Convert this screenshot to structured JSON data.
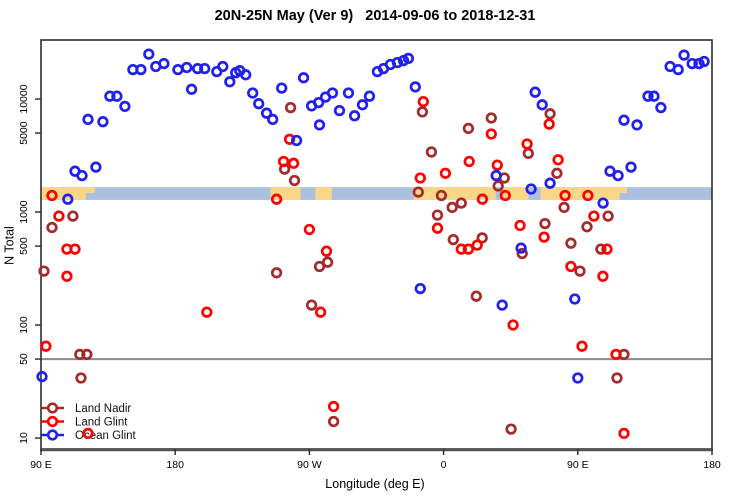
{
  "title": "20N-25N May (Ver 9)   2014-09-06 to 2018-12-31",
  "chart_data": {
    "type": "scatter",
    "title": "20N-25N May (Ver 9)   2014-09-06 to 2018-12-31",
    "xlabel": "Longitude (deg E)",
    "ylabel": "N Total",
    "x_axis": {
      "range": [
        90,
        540
      ],
      "note": "longitude axis wraps eastward 1.25 times around globe",
      "ticks": [
        {
          "pos": 90,
          "label": "90 E"
        },
        {
          "pos": 180,
          "label": "180"
        },
        {
          "pos": 270,
          "label": "90 W"
        },
        {
          "pos": 360,
          "label": "0"
        },
        {
          "pos": 450,
          "label": "90 E"
        },
        {
          "pos": 540,
          "label": "180"
        }
      ]
    },
    "y_axis": {
      "scale": "log",
      "range": [
        8,
        33300
      ],
      "ticks": [
        10,
        50,
        100,
        500,
        1000,
        5000,
        10000
      ],
      "tick_labels": [
        "10",
        "50",
        "100",
        "500",
        "1000",
        "5000",
        "10000"
      ]
    },
    "reference_line": {
      "y": 50,
      "color": "#8c8c8c"
    },
    "map_strip": {
      "y_top": 1660,
      "y_bottom": 1280,
      "ocean_color": "#aac0de",
      "land_color": "#fcd687",
      "land_patches_deg": [
        [
          90,
          120
        ],
        [
          244,
          264
        ],
        [
          274,
          285
        ],
        [
          340,
          395
        ],
        [
          399,
          417
        ],
        [
          425,
          478
        ]
      ],
      "coast_speckles_deg": [
        [
          120,
          126
        ],
        [
          476,
          483
        ]
      ]
    },
    "legend": [
      {
        "label": "Land Nadir",
        "color": "#a52a2a"
      },
      {
        "label": "Land Glint",
        "color": "#ff0000"
      },
      {
        "label": "Ocean Glint",
        "color": "#2020f0"
      }
    ],
    "series": [
      {
        "name": "Land Nadir",
        "color": "#a52a2a",
        "points": [
          [
            111.4,
            920
          ],
          [
            97.4,
            730
          ],
          [
            92,
            300
          ],
          [
            116,
            55
          ],
          [
            120.8,
            55
          ],
          [
            116.8,
            34
          ],
          [
            257.4,
            8400
          ],
          [
            253.4,
            2400
          ],
          [
            260,
            1900
          ],
          [
            248,
            290
          ],
          [
            276.8,
            330
          ],
          [
            282.2,
            360
          ],
          [
            271.5,
            150
          ],
          [
            286.2,
            14
          ],
          [
            345.8,
            7700
          ],
          [
            392,
            6800
          ],
          [
            376.6,
            5500
          ],
          [
            431.4,
            7400
          ],
          [
            416.8,
            3300
          ],
          [
            351.8,
            3400
          ],
          [
            343,
            1500
          ],
          [
            358.5,
            1400
          ],
          [
            365.8,
            1100
          ],
          [
            371.9,
            1200
          ],
          [
            355.9,
            940
          ],
          [
            366.5,
            570
          ],
          [
            385.9,
            590
          ],
          [
            428,
            790
          ],
          [
            436,
            2200
          ],
          [
            400.7,
            2000
          ],
          [
            396.6,
            1700
          ],
          [
            381.9,
            180
          ],
          [
            405.3,
            12
          ],
          [
            412.7,
            430
          ],
          [
            451.5,
            300
          ],
          [
            481,
            55
          ],
          [
            476.3,
            34
          ],
          [
            440.8,
            1100
          ],
          [
            470.3,
            920
          ],
          [
            456.2,
            740
          ],
          [
            445.4,
            530
          ],
          [
            465.5,
            470
          ]
        ]
      },
      {
        "name": "Land Glint",
        "color": "#ff0000",
        "points": [
          [
            97.4,
            1400
          ],
          [
            102,
            920
          ],
          [
            107.4,
            470
          ],
          [
            112.8,
            470
          ],
          [
            107.4,
            270
          ],
          [
            93.3,
            65
          ],
          [
            121.5,
            11
          ],
          [
            201.2,
            130
          ],
          [
            248,
            1300
          ],
          [
            252.7,
            2800
          ],
          [
            259.4,
            2700
          ],
          [
            256.7,
            4400
          ],
          [
            270,
            700
          ],
          [
            281.5,
            450
          ],
          [
            277.5,
            130
          ],
          [
            286.2,
            19
          ],
          [
            346.4,
            9500
          ],
          [
            392,
            4900
          ],
          [
            416,
            4000
          ],
          [
            377.2,
            2800
          ],
          [
            396,
            2600
          ],
          [
            361.2,
            2200
          ],
          [
            344.4,
            2000
          ],
          [
            386,
            1300
          ],
          [
            401.4,
            1400
          ],
          [
            355.9,
            720
          ],
          [
            371.9,
            470
          ],
          [
            376.6,
            470
          ],
          [
            382.5,
            510
          ],
          [
            411.3,
            760
          ],
          [
            427.4,
            600
          ],
          [
            430.8,
            6000
          ],
          [
            436.8,
            2900
          ],
          [
            406.6,
            100
          ],
          [
            445.4,
            330
          ],
          [
            466.8,
            270
          ],
          [
            441.5,
            1400
          ],
          [
            456.8,
            1400
          ],
          [
            460.8,
            920
          ],
          [
            452.8,
            65
          ],
          [
            475.6,
            55
          ],
          [
            481,
            11
          ],
          [
            469.6,
            470
          ]
        ]
      },
      {
        "name": "Ocean Glint",
        "color": "#2020f0",
        "points": [
          [
            162.3,
            25000
          ],
          [
            151.6,
            18200
          ],
          [
            157,
            18200
          ],
          [
            167,
            19400
          ],
          [
            172.4,
            20600
          ],
          [
            181.8,
            18200
          ],
          [
            187.8,
            19000
          ],
          [
            195,
            18600
          ],
          [
            199.8,
            18600
          ],
          [
            191,
            12200
          ],
          [
            136.2,
            10600
          ],
          [
            140.9,
            10600
          ],
          [
            146.3,
            8600
          ],
          [
            121.5,
            6600
          ],
          [
            131.5,
            6300
          ],
          [
            126.8,
            2500
          ],
          [
            112.8,
            2300
          ],
          [
            117.5,
            2100
          ],
          [
            108,
            1300
          ],
          [
            207.9,
            17500
          ],
          [
            211.9,
            19400
          ],
          [
            216.6,
            14200
          ],
          [
            220.6,
            17100
          ],
          [
            223.3,
            17800
          ],
          [
            227.3,
            16400
          ],
          [
            232,
            11300
          ],
          [
            236,
            9100
          ],
          [
            241.3,
            7500
          ],
          [
            245.4,
            6600
          ],
          [
            251.4,
            12500
          ],
          [
            261.4,
            4300
          ],
          [
            266.1,
            15400
          ],
          [
            271.5,
            8700
          ],
          [
            276.2,
            9300
          ],
          [
            276.8,
            5900
          ],
          [
            280.8,
            10400
          ],
          [
            285.5,
            11300
          ],
          [
            290.2,
            7900
          ],
          [
            296.2,
            11300
          ],
          [
            300.3,
            7100
          ],
          [
            305.6,
            8900
          ],
          [
            310.3,
            10600
          ],
          [
            315.6,
            17500
          ],
          [
            319.7,
            18600
          ],
          [
            324.3,
            20200
          ],
          [
            329,
            21000
          ],
          [
            333.1,
            21900
          ],
          [
            336.4,
            22900
          ],
          [
            341,
            12800
          ],
          [
            421.4,
            11500
          ],
          [
            426.1,
            8900
          ],
          [
            395.3,
            2100
          ],
          [
            431.4,
            1800
          ],
          [
            418.7,
            1600
          ],
          [
            412,
            480
          ],
          [
            521.3,
            24500
          ],
          [
            511.9,
            19400
          ],
          [
            517.3,
            18200
          ],
          [
            526.7,
            20600
          ],
          [
            531.3,
            20600
          ],
          [
            534.7,
            21500
          ],
          [
            497.1,
            10600
          ],
          [
            501.1,
            10600
          ],
          [
            505.7,
            8400
          ],
          [
            481,
            6500
          ],
          [
            489.7,
            5900
          ],
          [
            485.7,
            2500
          ],
          [
            471.6,
            2300
          ],
          [
            477,
            2100
          ],
          [
            467,
            1200
          ],
          [
            90.7,
            35
          ],
          [
            344.4,
            210
          ],
          [
            399.3,
            150
          ],
          [
            448,
            170
          ],
          [
            450,
            34
          ]
        ]
      }
    ]
  }
}
